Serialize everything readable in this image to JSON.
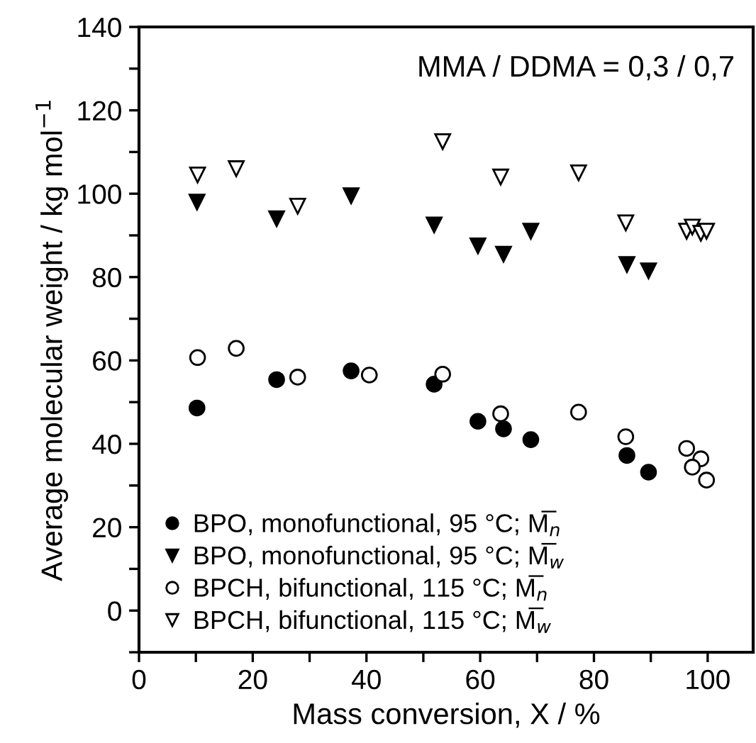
{
  "chart_data": {
    "type": "scatter",
    "xlabel": "Mass conversion, X / %",
    "ylabel": "Average molecular weight / kg mol$^{−1}$",
    "annotations": [
      "MMA / DDMA = 0,3 / 0,7"
    ],
    "xlim": [
      0,
      108
    ],
    "ylim": [
      -10,
      140
    ],
    "xticks": [
      0,
      {
        "value": 10,
        "label": null
      },
      20,
      {
        "value": 30,
        "label": null
      },
      40,
      {
        "value": 50,
        "label": null
      },
      60,
      {
        "value": 70,
        "label": null
      },
      80,
      {
        "value": 90,
        "label": null
      },
      100
    ],
    "yticks": [
      {
        "value": -10,
        "label": null
      },
      0,
      {
        "value": 10,
        "label": null
      },
      20,
      {
        "value": 30,
        "label": null
      },
      40,
      {
        "value": 50,
        "label": null
      },
      60,
      {
        "value": 70,
        "label": null
      },
      80,
      {
        "value": 90,
        "label": null
      },
      100,
      {
        "value": 110,
        "label": null
      },
      120,
      {
        "value": 130,
        "label": null
      },
      140
    ],
    "grid": false,
    "legend": "bottom left",
    "series": [
      {
        "name": "BPO, monofunctional, 95 °C; M̅$_{n}$",
        "color": "#000000",
        "marker": "circle",
        "x": [
          10.2,
          24.2,
          37.3,
          51.9,
          59.6,
          64.1,
          68.9,
          85.8,
          89.6
        ],
        "values": [
          48.6,
          55.4,
          57.5,
          54.3,
          45.4,
          43.6,
          41.0,
          37.2,
          33.2
        ]
      },
      {
        "name": "BPO, monofunctional, 95 °C; M̅$_{w}$",
        "color": "#000000",
        "marker": "triangle",
        "x": [
          10.2,
          24.2,
          37.3,
          51.9,
          59.6,
          64.1,
          68.9,
          85.8,
          89.6
        ],
        "values": [
          98,
          94,
          99.5,
          92.5,
          87.5,
          85.5,
          91,
          83,
          81.5
        ]
      },
      {
        "name": "BPCH, bifunctional, 115 °C; M̅$_{n}$",
        "color": "#ffffff",
        "marker": "circle",
        "x": [
          10.3,
          17.1,
          27.9,
          40.5,
          53.4,
          63.6,
          77.3,
          85.6,
          96.3,
          98.8,
          97.3,
          99.8
        ],
        "values": [
          60.7,
          62.9,
          56.0,
          56.5,
          56.7,
          47.2,
          47.6,
          41.7,
          38.9,
          36.4,
          34.4,
          31.3
        ]
      },
      {
        "name": "BPCH, bifunctional, 115 °C; M̅$_{w}$",
        "color": "#ffffff",
        "marker": "triangle",
        "x": [
          10.3,
          17.1,
          27.9,
          53.4,
          63.6,
          77.3,
          85.6,
          96.3,
          97.3,
          98.8,
          99.8
        ],
        "values": [
          104.5,
          106,
          97,
          112.5,
          104,
          105,
          93,
          91,
          92,
          90.5,
          91
        ]
      }
    ]
  }
}
